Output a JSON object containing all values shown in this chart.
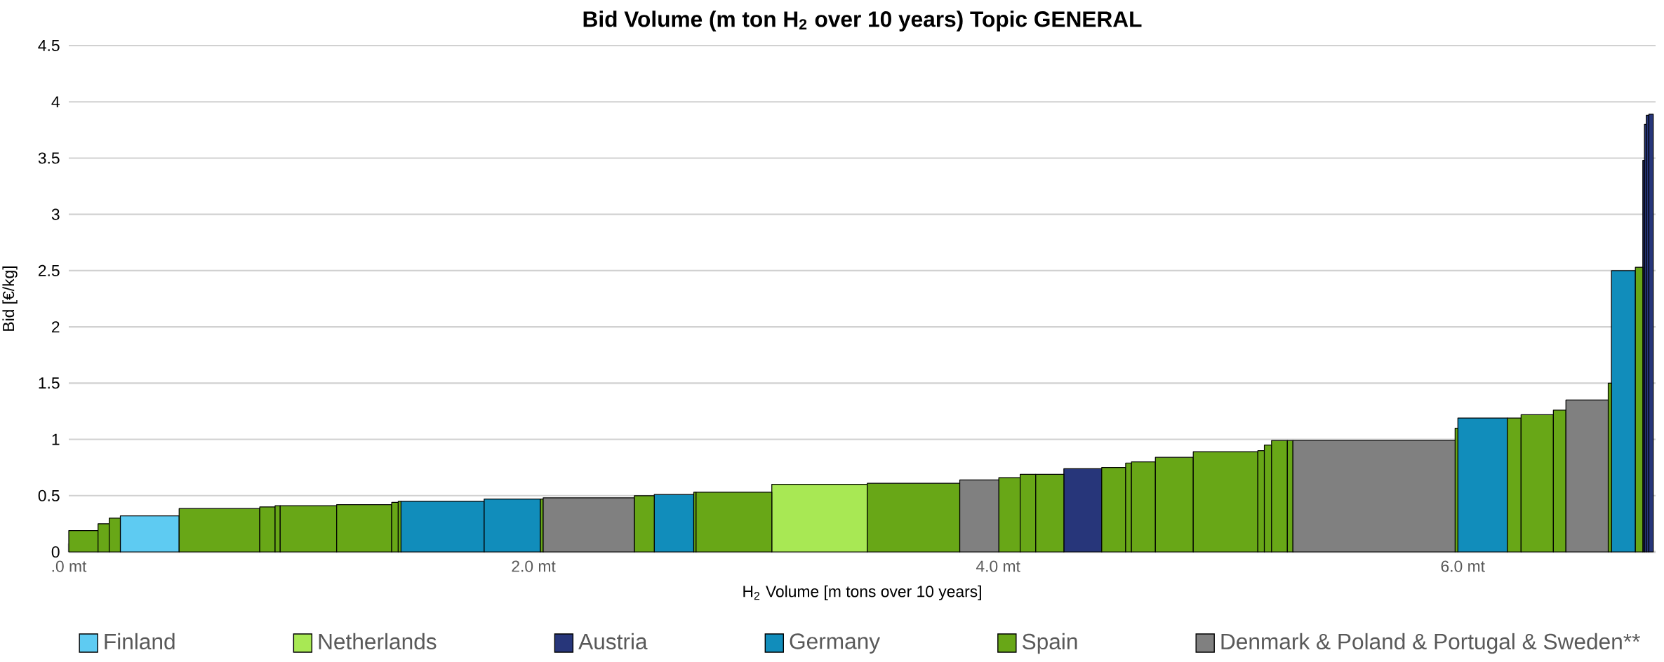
{
  "chart_data": {
    "type": "histogram",
    "title": "Bid Volume (m ton H$_{2}$ over 10 years) Topic GENERAL",
    "xlabel": "H$_{2}$ Volume [m tons over 10 years]",
    "ylabel": "Bid [€/kg]",
    "bins": [
      0,
      0.126,
      0.174,
      0.222,
      0.475,
      0.822,
      0.888,
      0.91,
      1.153,
      1.39,
      1.418,
      1.43,
      1.788,
      2.03,
      2.042,
      2.434,
      2.52,
      2.69,
      2.7,
      3.026,
      3.437,
      3.835,
      4.003,
      4.095,
      4.162,
      4.283,
      4.446,
      4.549,
      4.574,
      4.677,
      4.84,
      5.118,
      5.146,
      5.177,
      5.245,
      5.269,
      5.967,
      5.979,
      6.192,
      6.251,
      6.39,
      6.444,
      6.626,
      6.64,
      6.743,
      6.775,
      6.782,
      6.79,
      6.801,
      6.82
    ],
    "series": [
      {
        "name": "Finland",
        "color": "#5ecbf2",
        "values": [
          null,
          null,
          null,
          0.32,
          null,
          null,
          null,
          null,
          null,
          null,
          null,
          null,
          null,
          null,
          null,
          null,
          null,
          null,
          null,
          null,
          null,
          null,
          null,
          null,
          null,
          null,
          null,
          null,
          null,
          null,
          null,
          null,
          null,
          null,
          null,
          null,
          null,
          null,
          null,
          null,
          null,
          null,
          null,
          null,
          null,
          null,
          null,
          null,
          null
        ]
      },
      {
        "name": "Netherlands",
        "color": "#a8e854",
        "values": [
          null,
          null,
          null,
          null,
          null,
          null,
          null,
          null,
          null,
          null,
          null,
          null,
          null,
          null,
          null,
          null,
          null,
          null,
          null,
          0.6,
          null,
          null,
          null,
          null,
          null,
          null,
          null,
          null,
          null,
          null,
          null,
          null,
          null,
          null,
          null,
          null,
          null,
          null,
          null,
          null,
          null,
          null,
          null,
          null,
          null,
          null,
          null,
          null,
          null
        ]
      },
      {
        "name": "Austria",
        "color": "#27367a",
        "values": [
          null,
          null,
          null,
          null,
          null,
          null,
          null,
          null,
          null,
          null,
          null,
          null,
          null,
          null,
          null,
          null,
          null,
          null,
          null,
          null,
          null,
          null,
          null,
          null,
          null,
          0.74,
          null,
          null,
          null,
          null,
          null,
          null,
          null,
          null,
          null,
          null,
          null,
          null,
          null,
          null,
          null,
          null,
          null,
          null,
          null,
          3.48,
          3.8,
          3.88,
          3.89
        ]
      },
      {
        "name": "Germany",
        "color": "#118dbb",
        "values": [
          null,
          null,
          null,
          null,
          null,
          null,
          null,
          null,
          null,
          null,
          null,
          0.45,
          0.47,
          null,
          null,
          null,
          0.51,
          null,
          null,
          null,
          null,
          null,
          null,
          null,
          null,
          null,
          null,
          null,
          null,
          null,
          null,
          null,
          null,
          null,
          null,
          null,
          null,
          1.19,
          null,
          null,
          null,
          null,
          null,
          2.5,
          null,
          null,
          null,
          null,
          null
        ]
      },
      {
        "name": "Spain",
        "color": "#68a717",
        "values": [
          0.19,
          0.25,
          0.3,
          null,
          0.385,
          0.4,
          0.41,
          0.41,
          0.42,
          0.44,
          0.45,
          null,
          null,
          0.47,
          null,
          0.5,
          null,
          0.53,
          0.53,
          null,
          0.61,
          null,
          0.66,
          0.69,
          0.69,
          null,
          0.75,
          0.79,
          0.8,
          0.84,
          0.89,
          0.9,
          0.95,
          0.99,
          0.99,
          null,
          1.1,
          null,
          1.19,
          1.22,
          1.26,
          null,
          1.5,
          null,
          2.53,
          null,
          null,
          null,
          null
        ]
      },
      {
        "name": "Denmark & Poland & Portugal & Sweden**",
        "color": "#808080",
        "values": [
          null,
          null,
          null,
          null,
          null,
          null,
          null,
          null,
          null,
          null,
          null,
          null,
          null,
          null,
          0.48,
          null,
          null,
          null,
          null,
          null,
          null,
          0.64,
          null,
          null,
          null,
          null,
          null,
          null,
          null,
          null,
          null,
          null,
          null,
          null,
          null,
          0.99,
          null,
          null,
          null,
          null,
          null,
          1.35,
          null,
          null,
          null,
          null,
          null,
          null,
          null
        ]
      }
    ],
    "xlim": [
      0,
      6.83
    ],
    "ylim": [
      0,
      4.5
    ],
    "xticks": [
      {
        "value": 0,
        "label": ".0 mt"
      },
      {
        "value": 2,
        "label": "2.0 mt"
      },
      {
        "value": 4,
        "label": "4.0 mt"
      },
      {
        "value": 6,
        "label": "6.0 mt"
      }
    ],
    "yticks": [
      0,
      0.5,
      1,
      1.5,
      2,
      2.5,
      3,
      3.5,
      4,
      4.5
    ],
    "grid": "y",
    "legend": "bottom"
  }
}
